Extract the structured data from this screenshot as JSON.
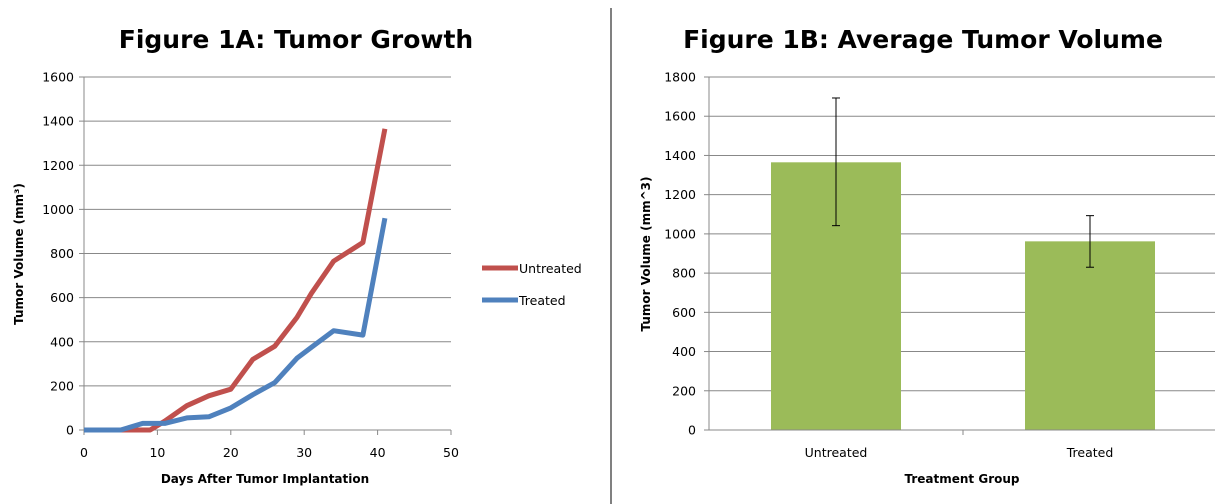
{
  "chart_data": [
    {
      "type": "line",
      "title": "Figure 1A: Tumor Growth",
      "xlabel": "Days After Tumor Implantation",
      "ylabel": "Tumor Volume (mm³)",
      "xlim": [
        0,
        50
      ],
      "ylim": [
        0,
        1600
      ],
      "xticks": [
        0,
        10,
        20,
        30,
        40,
        50
      ],
      "yticks": [
        0,
        200,
        400,
        600,
        800,
        1000,
        1200,
        1400,
        1600
      ],
      "grid": "horizontal",
      "legend_position": "right",
      "series": [
        {
          "name": "Untreated",
          "color": "#C0504D",
          "x": [
            0,
            5,
            9,
            11,
            14,
            17,
            20,
            23,
            26,
            29,
            31,
            34,
            38,
            41
          ],
          "y": [
            0,
            0,
            0,
            40,
            110,
            155,
            185,
            320,
            380,
            510,
            620,
            765,
            850,
            1365
          ]
        },
        {
          "name": "Treated",
          "color": "#4F81BD",
          "x": [
            0,
            5,
            8,
            11,
            14,
            17,
            20,
            23,
            26,
            29,
            31,
            34,
            38,
            41
          ],
          "y": [
            0,
            0,
            30,
            30,
            55,
            60,
            100,
            160,
            215,
            325,
            375,
            450,
            430,
            960
          ]
        }
      ]
    },
    {
      "type": "bar",
      "title": "Figure 1B: Average Tumor Volume",
      "xlabel": "Treatment Group",
      "ylabel": "Tumor Volume (mm^3)",
      "ylim": [
        0,
        1800
      ],
      "yticks": [
        0,
        200,
        400,
        600,
        800,
        1000,
        1200,
        1400,
        1600,
        1800
      ],
      "grid": "horizontal",
      "categories": [
        "Untreated",
        "Treated"
      ],
      "values": [
        1365,
        962
      ],
      "error_bars": [
        [
          1042,
          1693
        ],
        [
          830,
          1093
        ]
      ],
      "bar_color": "#9BBB59"
    }
  ],
  "divider_color": "#808080"
}
